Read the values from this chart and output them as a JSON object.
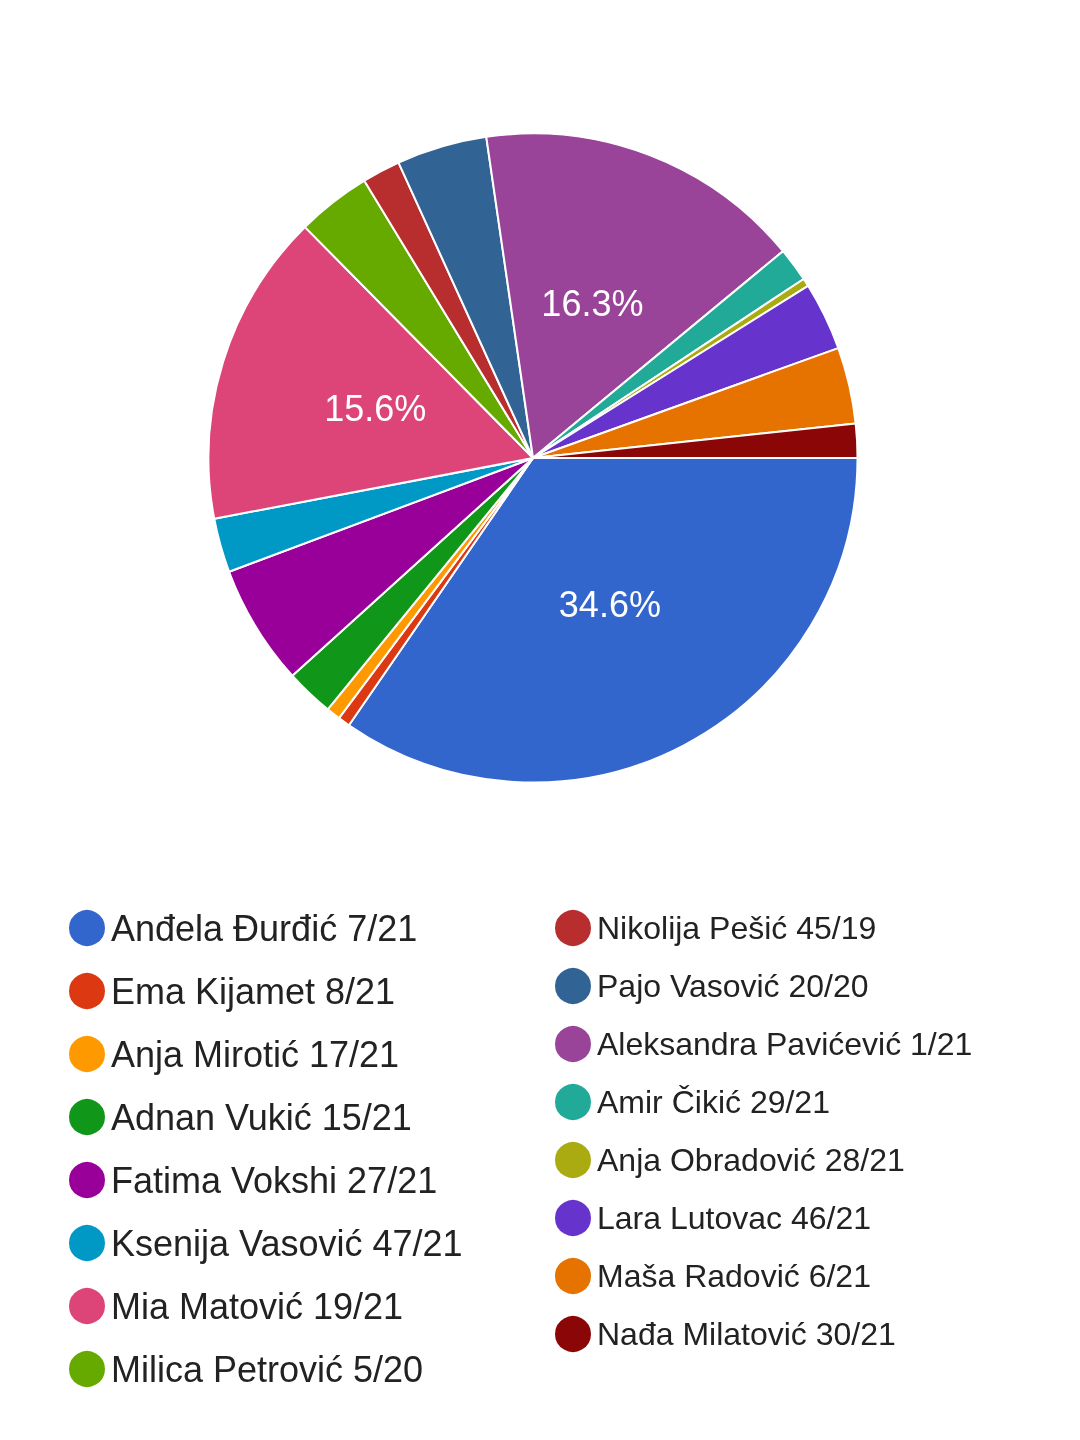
{
  "chart_data": {
    "type": "pie",
    "categories": [
      "Anđela Đurđić 7/21",
      "Ema Kijamet 8/21",
      "Anja Mirotić 17/21",
      "Adnan Vukić 15/21",
      "Fatima Vokshi 27/21",
      "Ksenija Vasović 47/21",
      "Mia Matović 19/21",
      "Milica Petrović 5/20",
      "Nikolija Pešić 45/19",
      "Pajo Vasović 20/20",
      "Aleksandra Pavićević 1/21",
      "Amir Čikić 29/21",
      "Anja Obradović 28/21",
      "Lara Lutovac 46/21",
      "Maša Radović 6/21",
      "Nađa Milatović 30/21"
    ],
    "values": [
      34.6,
      0.6,
      0.7,
      2.4,
      6.0,
      2.7,
      15.6,
      3.7,
      1.9,
      4.5,
      16.3,
      1.7,
      0.4,
      3.4,
      3.8,
      1.7
    ],
    "value_labels": [
      "34.6%",
      null,
      null,
      null,
      null,
      null,
      "15.6%",
      null,
      null,
      null,
      "16.3%",
      null,
      null,
      null,
      null,
      null
    ],
    "colors": [
      "#3366cc",
      "#dc3912",
      "#ff9900",
      "#109618",
      "#990099",
      "#0099c6",
      "#dd4477",
      "#66aa00",
      "#b82e2e",
      "#316395",
      "#994499",
      "#22aa99",
      "#aaaa11",
      "#6633cc",
      "#e67300",
      "#8b0707"
    ],
    "legend": "bottom"
  }
}
